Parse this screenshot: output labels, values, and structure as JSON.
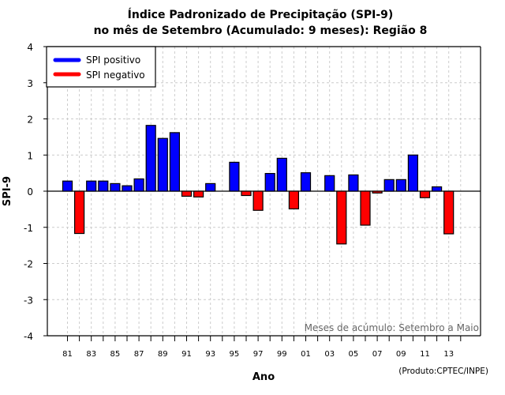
{
  "chart_data": {
    "type": "bar",
    "title": "Índice Padronizado de Precipitação (SPI-9)",
    "subtitle": "no mês de Setembro (Acumulado: 9 meses): Região 8",
    "xlabel": "Ano",
    "ylabel": "SPI-9",
    "ylim": [
      -4,
      4
    ],
    "yticks": [
      "-4",
      "-3",
      "-2",
      "-1",
      "0",
      "1",
      "2",
      "3",
      "4"
    ],
    "xlim_years": [
      1981,
      2014
    ],
    "xtick_labels": [
      "81",
      "83",
      "85",
      "87",
      "89",
      "91",
      "93",
      "95",
      "97",
      "99",
      "01",
      "03",
      "05",
      "07",
      "09",
      "11",
      "13"
    ],
    "grid": true,
    "legend": {
      "placement": "top-left",
      "entries": [
        {
          "label": "SPI positivo",
          "color": "#0000ff"
        },
        {
          "label": "SPI negativo",
          "color": "#ff0000"
        }
      ]
    },
    "colors": {
      "positive": "#0000ff",
      "negative": "#ff0000"
    },
    "categories": [
      "1981",
      "1982",
      "1983",
      "1984",
      "1985",
      "1986",
      "1987",
      "1988",
      "1989",
      "1990",
      "1991",
      "1992",
      "1993",
      "1994",
      "1995",
      "1996",
      "1997",
      "1998",
      "1999",
      "2000",
      "2001",
      "2002",
      "2003",
      "2004",
      "2005",
      "2006",
      "2007",
      "2008",
      "2009",
      "2010",
      "2011",
      "2012",
      "2013"
    ],
    "values": [
      0.28,
      -1.17,
      0.28,
      0.28,
      0.21,
      0.15,
      0.34,
      1.82,
      1.46,
      1.62,
      -0.14,
      -0.16,
      0.21,
      null,
      0.8,
      -0.12,
      -0.53,
      0.49,
      0.91,
      -0.49,
      0.51,
      null,
      0.43,
      -1.46,
      0.45,
      -0.94,
      -0.05,
      0.32,
      0.32,
      1.0,
      -0.18,
      0.12,
      -1.18
    ],
    "annotation": "Meses de acúmulo: Setembro a Maio",
    "credit": "(Produto:CPTEC/INPE)"
  }
}
